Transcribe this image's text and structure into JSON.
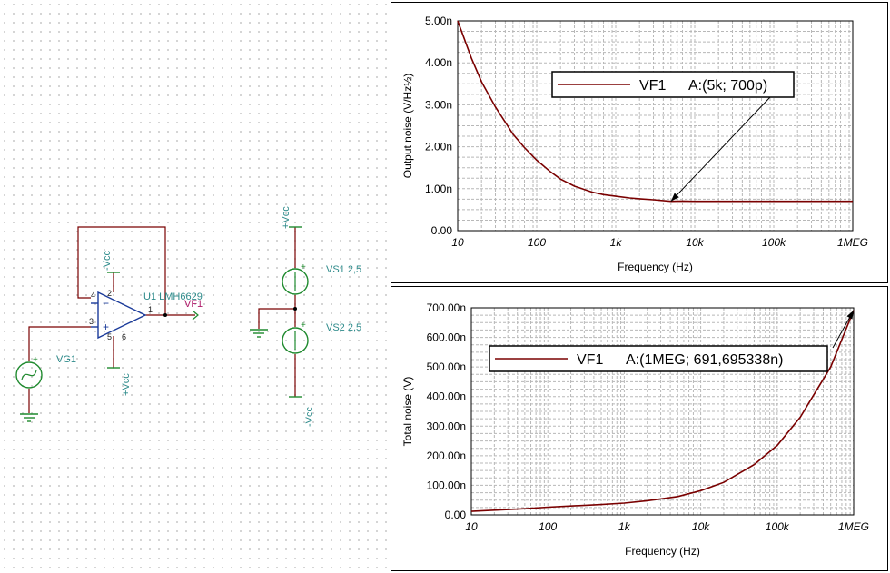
{
  "schematic": {
    "opamp_label": "U1 LMH6629",
    "output_probe": "VF1",
    "generator": "VG1",
    "vs1": "VS1 2,5",
    "vs2": "VS2 2,5",
    "minus_vcc": "-Vcc",
    "plus_vcc": "+Vcc",
    "pin1": "1",
    "pin2": "2",
    "pin3": "3",
    "pin4": "4",
    "pin5": "5",
    "pin6": "6",
    "plus_sign": "+",
    "minus_sign": "−",
    "wire_color": "#7a0000",
    "component_color": "#1f8a2e",
    "opamp_color": "#1a3a9a",
    "label_color": "#2e8b8b"
  },
  "chart_data": [
    {
      "type": "line",
      "title": "",
      "xlabel": "Frequency (Hz)",
      "ylabel": "Output noise (V/Hz½)",
      "x_scale": "log",
      "xlim": [
        10,
        1000000
      ],
      "ylim": [
        0,
        5e-09
      ],
      "xtick_labels": [
        "10",
        "100",
        "1k",
        "10k",
        "100k",
        "1MEG"
      ],
      "xtick_values": [
        10,
        100,
        1000,
        10000,
        100000,
        1000000
      ],
      "ytick_labels": [
        "0.00",
        "1.00n",
        "2.00n",
        "3.00n",
        "4.00n",
        "5.00n"
      ],
      "ytick_values": [
        0,
        1e-09,
        2e-09,
        3e-09,
        4e-09,
        5e-09
      ],
      "grid": true,
      "series": [
        {
          "name": "VF1",
          "color": "#7a0000",
          "x": [
            10,
            15,
            20,
            30,
            50,
            70,
            100,
            150,
            200,
            300,
            500,
            700,
            1000,
            1500,
            2000,
            3000,
            5000,
            7000,
            10000,
            30000,
            100000,
            300000,
            1000000
          ],
          "y": [
            5e-09,
            4.1e-09,
            3.55e-09,
            2.95e-09,
            2.3e-09,
            1.98e-09,
            1.68e-09,
            1.4e-09,
            1.23e-09,
            1.06e-09,
            9.2e-10,
            8.6e-10,
            8.2e-10,
            7.8e-10,
            7.6e-10,
            7.35e-10,
            7e-10,
            7.05e-10,
            7e-10,
            7e-10,
            7e-10,
            7e-10,
            7e-10
          ]
        }
      ],
      "annotation": {
        "series": "VF1",
        "text": "A:(5k; 700p)",
        "x": 5000,
        "y": 7e-10
      },
      "legend": "top-right"
    },
    {
      "type": "line",
      "title": "",
      "xlabel": "Frequency (Hz)",
      "ylabel": "Total noise (V)",
      "x_scale": "log",
      "xlim": [
        10,
        1000000
      ],
      "ylim": [
        0,
        7e-07
      ],
      "xtick_labels": [
        "10",
        "100",
        "1k",
        "10k",
        "100k",
        "1MEG"
      ],
      "xtick_values": [
        10,
        100,
        1000,
        10000,
        100000,
        1000000
      ],
      "ytick_labels": [
        "0.00",
        "100.00n",
        "200.00n",
        "300.00n",
        "400.00n",
        "500.00n",
        "600.00n",
        "700.00n"
      ],
      "ytick_values": [
        0,
        1e-07,
        2e-07,
        3e-07,
        4e-07,
        5e-07,
        6e-07,
        7e-07
      ],
      "grid": true,
      "series": [
        {
          "name": "VF1",
          "color": "#7a0000",
          "x": [
            10,
            20,
            50,
            100,
            200,
            500,
            1000,
            2000,
            5000,
            10000,
            20000,
            50000,
            100000,
            200000,
            500000,
            1000000
          ],
          "y": [
            1.2e-08,
            1.6e-08,
            2.1e-08,
            2.6e-08,
            3e-08,
            3.5e-08,
            4e-08,
            4.8e-08,
            6.2e-08,
            8.2e-08,
            1.1e-07,
            1.7e-07,
            2.35e-07,
            3.3e-07,
            5e-07,
            6.91695338e-07
          ]
        }
      ],
      "annotation": {
        "series": "VF1",
        "text": "A:(1MEG; 691,695338n)",
        "x": 1000000,
        "y": 6.91695338e-07
      },
      "legend": "top-right"
    }
  ]
}
